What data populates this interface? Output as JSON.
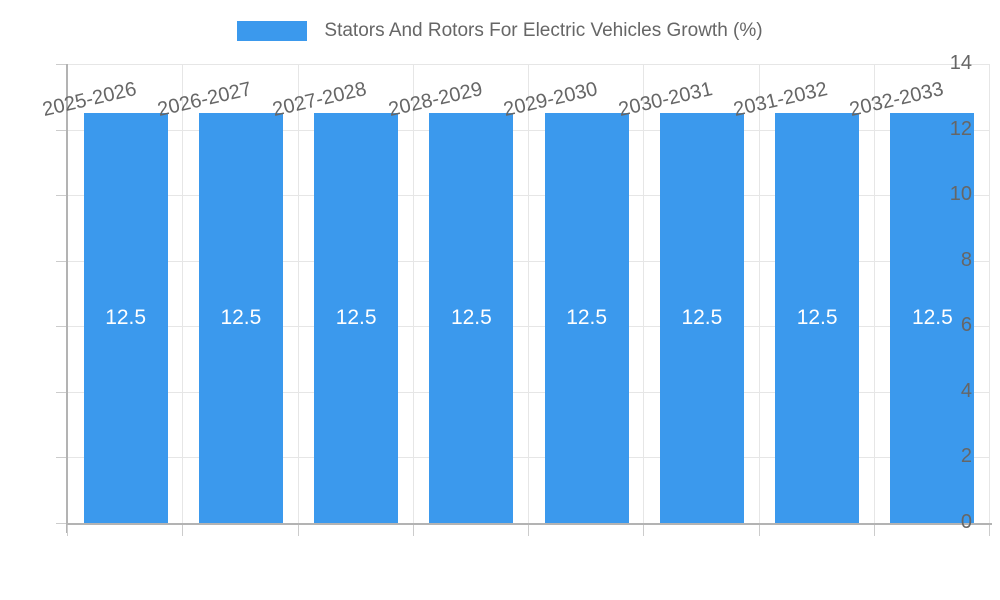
{
  "chart_data": {
    "type": "bar",
    "title": "Stators And Rotors For Electric Vehicles Growth (%)",
    "legend": {
      "position": "top",
      "label": "Stators And Rotors For Electric Vehicles Growth (%)"
    },
    "categories": [
      "2025-2026",
      "2026-2027",
      "2027-2028",
      "2028-2029",
      "2029-2030",
      "2030-2031",
      "2031-2032",
      "2032-2033"
    ],
    "series": [
      {
        "name": "Stators And Rotors For Electric Vehicles Growth (%)",
        "values": [
          12.5,
          12.5,
          12.5,
          12.5,
          12.5,
          12.5,
          12.5,
          12.5
        ]
      }
    ],
    "bar_labels": [
      "12.5",
      "12.5",
      "12.5",
      "12.5",
      "12.5",
      "12.5",
      "12.5",
      "12.5"
    ],
    "xlabel": "",
    "ylabel": "",
    "ylim": [
      0,
      14
    ],
    "y_ticks": [
      0,
      2,
      4,
      6,
      8,
      10,
      12,
      14
    ],
    "grid": true,
    "colors": {
      "bar": "#3b99ed",
      "bar_value_text": "#ffffff",
      "grid": "#e6e6e6",
      "axis": "#b3b3b3",
      "tick_text": "#666666",
      "legend_text": "#666666",
      "background": "#ffffff"
    }
  }
}
